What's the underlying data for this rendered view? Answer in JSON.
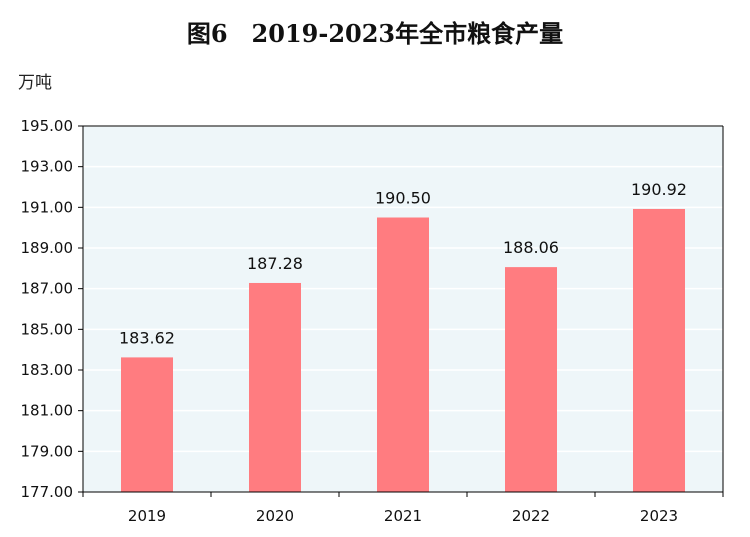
{
  "title": "图6　2019-2023年全市粮食产量",
  "unit_label": "万吨",
  "colors": {
    "bar": "#FF7C80",
    "plot_bg": "#EEF6F9",
    "grid": "#FFFFFF",
    "axis": "#000000"
  },
  "chart_data": {
    "type": "bar",
    "title": "图6　2019-2023年全市粮食产量",
    "ylabel": "万吨",
    "xlabel": "",
    "categories": [
      "2019",
      "2020",
      "2021",
      "2022",
      "2023"
    ],
    "values": [
      183.62,
      187.28,
      190.5,
      188.06,
      190.92
    ],
    "value_labels": [
      "183.62",
      "187.28",
      "190.50",
      "188.06",
      "190.92"
    ],
    "ylim": [
      177,
      195
    ],
    "yticks": [
      177,
      179,
      181,
      183,
      185,
      187,
      189,
      191,
      193,
      195
    ],
    "ytick_labels": [
      "177.00",
      "179.00",
      "181.00",
      "183.00",
      "185.00",
      "187.00",
      "189.00",
      "191.00",
      "193.00",
      "195.00"
    ],
    "grid": true,
    "legend": "none"
  }
}
